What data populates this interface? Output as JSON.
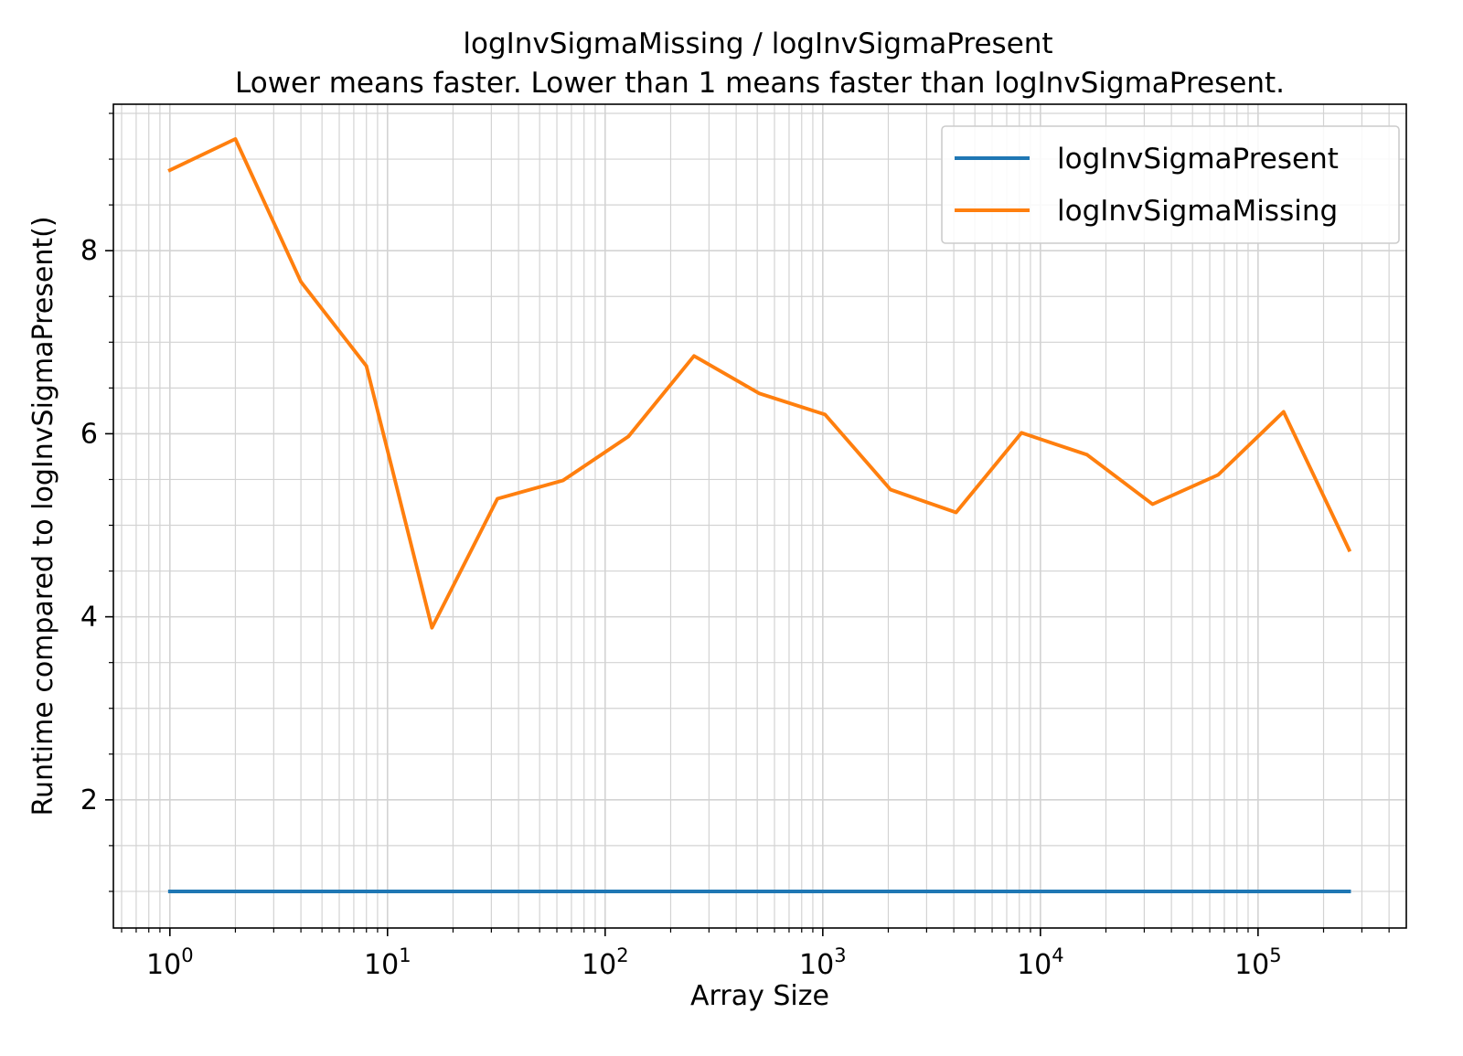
{
  "chart_data": {
    "type": "line",
    "title": "logInvSigmaMissing / logInvSigmaPresent",
    "subtitle": "Lower means faster. Lower than 1 means faster than logInvSigmaPresent.",
    "xlabel": "Array Size",
    "ylabel": "Runtime compared to logInvSigmaPresent()",
    "x_scale": "log",
    "x_tick_labels": [
      {
        "base": "10",
        "exp": "0"
      },
      {
        "base": "10",
        "exp": "1"
      },
      {
        "base": "10",
        "exp": "2"
      },
      {
        "base": "10",
        "exp": "3"
      },
      {
        "base": "10",
        "exp": "4"
      },
      {
        "base": "10",
        "exp": "5"
      }
    ],
    "y_tick_labels": [
      "2",
      "4",
      "6",
      "8"
    ],
    "xlim": [
      0.55,
      480000
    ],
    "ylim": [
      0.6,
      9.6
    ],
    "grid": "major and minor",
    "legend_position": "top-right",
    "x": [
      1,
      2,
      4,
      8,
      16,
      32,
      64,
      128,
      256,
      512,
      1024,
      2048,
      4096,
      8192,
      16384,
      32768,
      65536,
      131072,
      262144
    ],
    "series": [
      {
        "name": "logInvSigmaPresent",
        "color": "#1f77b4",
        "values": [
          1,
          1,
          1,
          1,
          1,
          1,
          1,
          1,
          1,
          1,
          1,
          1,
          1,
          1,
          1,
          1,
          1,
          1,
          1
        ]
      },
      {
        "name": "logInvSigmaMissing",
        "color": "#ff7f0e",
        "values": [
          8.88,
          9.22,
          7.66,
          6.74,
          3.88,
          5.29,
          5.49,
          5.97,
          6.85,
          6.44,
          6.21,
          5.39,
          5.14,
          6.01,
          5.77,
          5.23,
          5.55,
          6.24,
          4.73
        ]
      }
    ]
  }
}
